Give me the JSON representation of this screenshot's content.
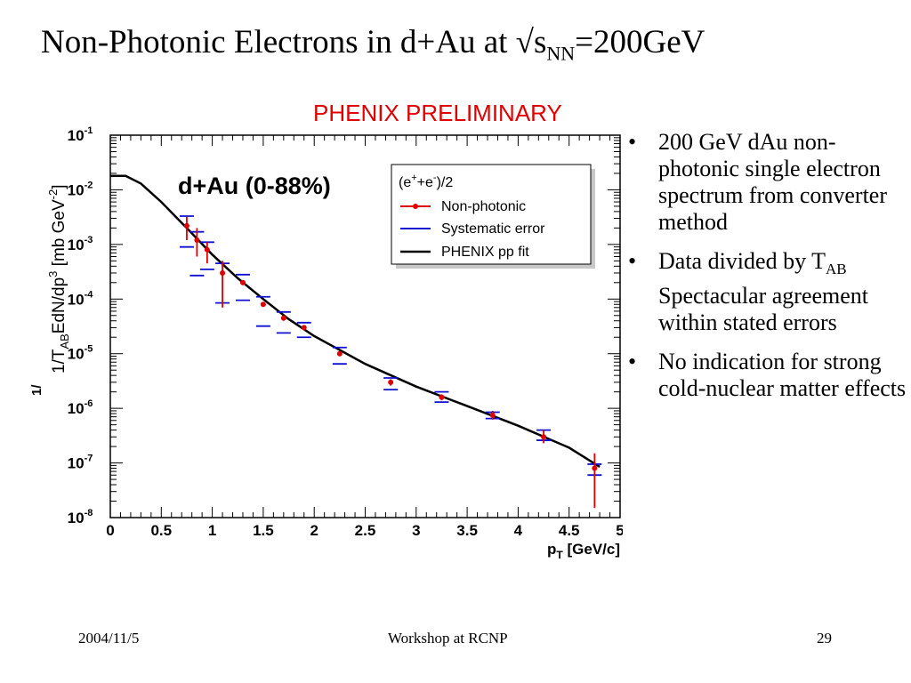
{
  "slide": {
    "title_main": "Non-Photonic Electrons in d+Au at √s",
    "title_sub": "NN",
    "title_tail": "=200GeV",
    "preliminary": "PHENIX PRELIMINARY",
    "bullets": [
      {
        "text": "200 GeV dAu non-photonic single electron spectrum from converter method"
      },
      {
        "pre": "Data divided by T",
        "sub": "AB",
        "post": " Spectacular agreement within stated errors"
      },
      {
        "text": "No indication for strong cold-nuclear matter effects"
      }
    ],
    "footer": {
      "date": "2004/11/5",
      "event": "Workshop at RCNP",
      "page": "29"
    }
  },
  "chart_data": {
    "type": "scatter",
    "panel_label": "d+Au (0-88%)",
    "xlabel": "p",
    "xlabel_sub": "T",
    "xlabel_unit": " [GeV/c]",
    "ylabel_pre": "1/T",
    "ylabel_sub": "AB",
    "ylabel_mid": "EdN/dp",
    "ylabel_sup": "3",
    "ylabel_unit": " [mb GeV",
    "ylabel_unit_sup": "-2",
    "ylabel_close": "]",
    "y_prefix_glyph": "1/",
    "xlim": [
      0,
      5
    ],
    "ylim": [
      1e-08,
      0.1
    ],
    "yscale": "log",
    "x_ticks": [
      "0",
      "0.5",
      "1",
      "1.5",
      "2",
      "2.5",
      "3",
      "3.5",
      "4",
      "4.5",
      "5"
    ],
    "y_ticks": [
      {
        "base": "10",
        "exp": "-1"
      },
      {
        "base": "10",
        "exp": "-2"
      },
      {
        "base": "10",
        "exp": "-3"
      },
      {
        "base": "10",
        "exp": "-4"
      },
      {
        "base": "10",
        "exp": "-5"
      },
      {
        "base": "10",
        "exp": "-6"
      },
      {
        "base": "10",
        "exp": "-7"
      },
      {
        "base": "10",
        "exp": "-8"
      }
    ],
    "legend": {
      "header_base": "(e",
      "header_sup1": "+",
      "header_mid": "+e",
      "header_sup2": "-",
      "header_tail": ")/2",
      "placement": "top-right",
      "entries": [
        "Non-photonic",
        "Systematic error",
        "PHENIX pp fit"
      ]
    },
    "colors": {
      "data": "#e00000",
      "syst": "#1010d0",
      "fit": "#000000",
      "prelim": "#e00000"
    },
    "series": [
      {
        "name": "Non-photonic",
        "points": [
          {
            "x": 0.75,
            "y": 0.0022,
            "stat": [
              0.0012,
              0.0032
            ],
            "syst": [
              0.0009,
              0.0033
            ]
          },
          {
            "x": 0.85,
            "y": 0.0012,
            "stat": [
              0.0006,
              0.002
            ],
            "syst": [
              0.00027,
              0.0017
            ]
          },
          {
            "x": 0.95,
            "y": 0.0008,
            "stat": [
              0.00045,
              0.0011
            ],
            "syst": [
              0.00035,
              0.0011
            ]
          },
          {
            "x": 1.1,
            "y": 0.0003,
            "stat": [
              7e-05,
              0.0005
            ],
            "syst": [
              8.5e-05,
              0.00045
            ]
          },
          {
            "x": 1.3,
            "y": 0.0002,
            "stat": [
              0.00018,
              0.00022
            ],
            "syst": [
              9.5e-05,
              0.00028
            ]
          },
          {
            "x": 1.5,
            "y": 8e-05,
            "stat": [
              7.2e-05,
              8.8e-05
            ],
            "syst": [
              3.2e-05,
              0.00011
            ]
          },
          {
            "x": 1.7,
            "y": 4.5e-05,
            "stat": [
              4e-05,
              5e-05
            ],
            "syst": [
              2.4e-05,
              5.8e-05
            ]
          },
          {
            "x": 1.9,
            "y": 3e-05,
            "stat": [
              2.7e-05,
              3.3e-05
            ],
            "syst": [
              2e-05,
              3.7e-05
            ]
          },
          {
            "x": 2.25,
            "y": 1e-05,
            "stat": [
              9e-06,
              1.1e-05
            ],
            "syst": [
              6.5e-06,
              1.3e-05
            ]
          },
          {
            "x": 2.75,
            "y": 3e-06,
            "stat": [
              2.6e-06,
              3.4e-06
            ],
            "syst": [
              2.2e-06,
              3.6e-06
            ]
          },
          {
            "x": 3.25,
            "y": 1.6e-06,
            "stat": [
              1.4e-06,
              1.8e-06
            ],
            "syst": [
              1.3e-06,
              2e-06
            ]
          },
          {
            "x": 3.75,
            "y": 7.5e-07,
            "stat": [
              6.2e-07,
              9e-07
            ],
            "syst": [
              6.5e-07,
              8.5e-07
            ]
          },
          {
            "x": 4.25,
            "y": 3e-07,
            "stat": [
              2.3e-07,
              4e-07
            ],
            "syst": [
              2.6e-07,
              4e-07
            ]
          },
          {
            "x": 4.75,
            "y": 8e-08,
            "stat": [
              1.5e-08,
              1.5e-07
            ],
            "syst": [
              6e-08,
              9.5e-08
            ]
          }
        ]
      },
      {
        "name": "PHENIX pp fit",
        "points": [
          {
            "x": 0.0,
            "y": 0.018
          },
          {
            "x": 0.15,
            "y": 0.018
          },
          {
            "x": 0.3,
            "y": 0.013
          },
          {
            "x": 0.5,
            "y": 0.006
          },
          {
            "x": 0.75,
            "y": 0.002
          },
          {
            "x": 1.0,
            "y": 0.00065
          },
          {
            "x": 1.25,
            "y": 0.00024
          },
          {
            "x": 1.5,
            "y": 0.0001
          },
          {
            "x": 1.75,
            "y": 4.3e-05
          },
          {
            "x": 2.0,
            "y": 2.1e-05
          },
          {
            "x": 2.5,
            "y": 6.5e-06
          },
          {
            "x": 3.0,
            "y": 2.5e-06
          },
          {
            "x": 3.5,
            "y": 1.1e-06
          },
          {
            "x": 4.0,
            "y": 4.8e-07
          },
          {
            "x": 4.5,
            "y": 1.9e-07
          },
          {
            "x": 4.8,
            "y": 8.5e-08
          }
        ]
      }
    ]
  }
}
